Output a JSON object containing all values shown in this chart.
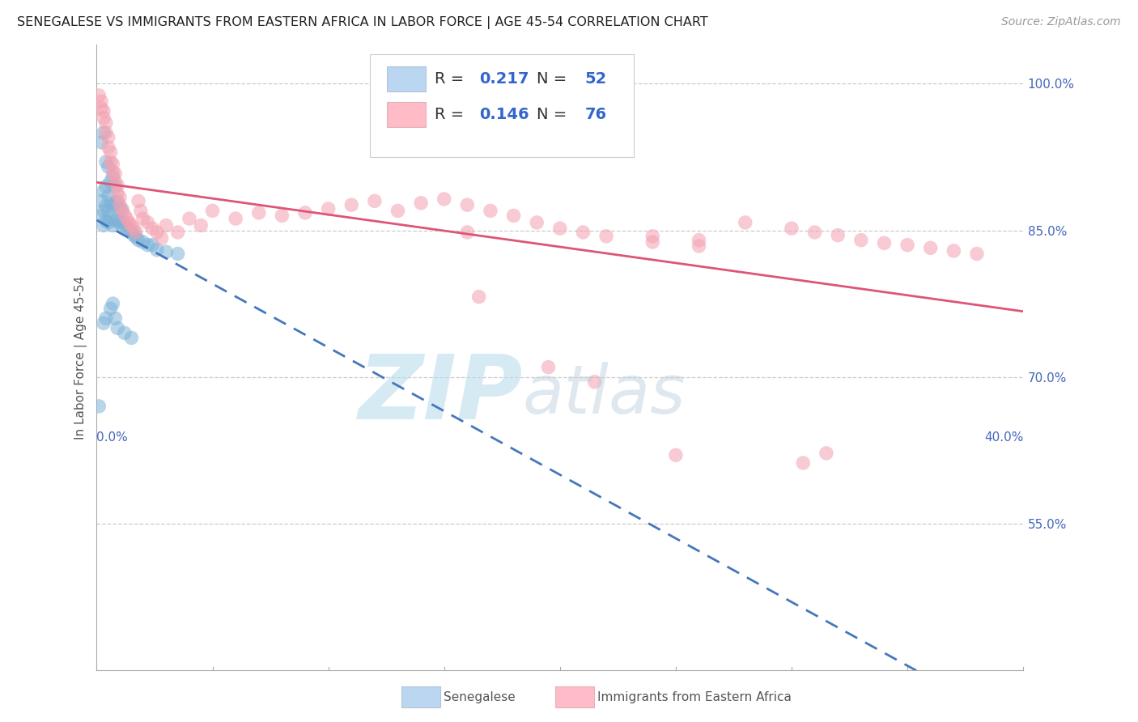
{
  "title": "SENEGALESE VS IMMIGRANTS FROM EASTERN AFRICA IN LABOR FORCE | AGE 45-54 CORRELATION CHART",
  "source": "Source: ZipAtlas.com",
  "ylabel": "In Labor Force | Age 45-54",
  "xlim": [
    0.0,
    0.4
  ],
  "ylim": [
    0.4,
    1.04
  ],
  "yticks": [
    0.55,
    0.7,
    0.85,
    1.0
  ],
  "yticklabels": [
    "55.0%",
    "70.0%",
    "85.0%",
    "100.0%"
  ],
  "blue_color": "#7EB3D8",
  "pink_color": "#F4A0B0",
  "trend_blue_color": "#4477BB",
  "trend_pink_color": "#DD5577",
  "legend_blue_face": "#AACCEE",
  "legend_pink_face": "#FFAABB",
  "watermark_zip_color": "#BBDDEE",
  "watermark_atlas_color": "#BBCCDD",
  "grid_color": "#CCCCCC",
  "axis_color": "#AAAAAA",
  "title_color": "#222222",
  "source_color": "#999999",
  "tick_label_color": "#4466BB",
  "legend_text_color": "#333333",
  "legend_value_color": "#3366CC",
  "bottom_legend_text_color": "#555555",
  "blue_R": "0.217",
  "blue_N": "52",
  "pink_R": "0.146",
  "pink_N": "76",
  "blue_x": [
    0.001,
    0.002,
    0.002,
    0.002,
    0.003,
    0.003,
    0.003,
    0.003,
    0.004,
    0.004,
    0.004,
    0.004,
    0.005,
    0.005,
    0.005,
    0.005,
    0.006,
    0.006,
    0.006,
    0.007,
    0.007,
    0.007,
    0.008,
    0.008,
    0.008,
    0.009,
    0.009,
    0.01,
    0.01,
    0.011,
    0.011,
    0.012,
    0.013,
    0.014,
    0.015,
    0.016,
    0.017,
    0.018,
    0.02,
    0.022,
    0.024,
    0.026,
    0.03,
    0.035,
    0.003,
    0.004,
    0.006,
    0.007,
    0.008,
    0.009,
    0.012,
    0.015
  ],
  "blue_y": [
    0.67,
    0.865,
    0.88,
    0.94,
    0.855,
    0.87,
    0.89,
    0.95,
    0.86,
    0.875,
    0.895,
    0.92,
    0.858,
    0.87,
    0.885,
    0.915,
    0.862,
    0.878,
    0.9,
    0.855,
    0.875,
    0.905,
    0.86,
    0.878,
    0.895,
    0.86,
    0.88,
    0.858,
    0.872,
    0.855,
    0.87,
    0.858,
    0.852,
    0.85,
    0.848,
    0.845,
    0.843,
    0.84,
    0.838,
    0.835,
    0.835,
    0.83,
    0.828,
    0.826,
    0.755,
    0.76,
    0.77,
    0.775,
    0.76,
    0.75,
    0.745,
    0.74
  ],
  "pink_x": [
    0.001,
    0.002,
    0.002,
    0.003,
    0.003,
    0.004,
    0.004,
    0.005,
    0.005,
    0.006,
    0.006,
    0.007,
    0.007,
    0.008,
    0.008,
    0.009,
    0.009,
    0.01,
    0.01,
    0.011,
    0.012,
    0.013,
    0.014,
    0.015,
    0.016,
    0.017,
    0.018,
    0.019,
    0.02,
    0.022,
    0.024,
    0.026,
    0.028,
    0.03,
    0.035,
    0.04,
    0.045,
    0.05,
    0.06,
    0.07,
    0.08,
    0.09,
    0.1,
    0.11,
    0.12,
    0.13,
    0.14,
    0.15,
    0.16,
    0.17,
    0.18,
    0.19,
    0.2,
    0.21,
    0.22,
    0.24,
    0.26,
    0.28,
    0.3,
    0.31,
    0.32,
    0.33,
    0.34,
    0.35,
    0.36,
    0.37,
    0.38,
    0.16,
    0.24,
    0.26,
    0.165,
    0.195,
    0.215,
    0.25,
    0.305,
    0.315
  ],
  "pink_y": [
    0.988,
    0.982,
    0.975,
    0.972,
    0.965,
    0.96,
    0.95,
    0.945,
    0.935,
    0.93,
    0.92,
    0.918,
    0.91,
    0.908,
    0.9,
    0.896,
    0.888,
    0.884,
    0.876,
    0.872,
    0.866,
    0.862,
    0.858,
    0.855,
    0.852,
    0.848,
    0.88,
    0.87,
    0.862,
    0.858,
    0.852,
    0.848,
    0.842,
    0.855,
    0.848,
    0.862,
    0.855,
    0.87,
    0.862,
    0.868,
    0.865,
    0.868,
    0.872,
    0.876,
    0.88,
    0.87,
    0.878,
    0.882,
    0.876,
    0.87,
    0.865,
    0.858,
    0.852,
    0.848,
    0.844,
    0.838,
    0.834,
    0.858,
    0.852,
    0.848,
    0.845,
    0.84,
    0.837,
    0.835,
    0.832,
    0.829,
    0.826,
    0.848,
    0.844,
    0.84,
    0.782,
    0.71,
    0.695,
    0.62,
    0.612,
    0.622
  ],
  "title_fontsize": 11.5,
  "ylabel_fontsize": 11,
  "tick_fontsize": 11,
  "legend_fontsize": 14,
  "source_fontsize": 10,
  "watermark_fontsize": 80
}
